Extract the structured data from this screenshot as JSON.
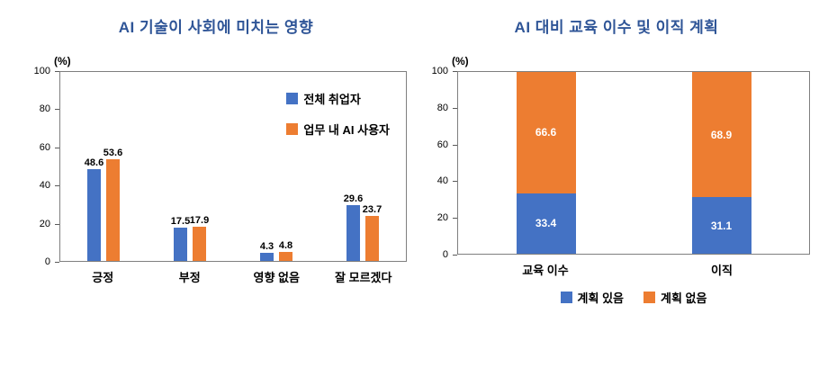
{
  "colors": {
    "title": "#2F5597",
    "series_blue": "#4472C4",
    "series_orange": "#ED7D31",
    "axis_border": "#7f7f7f"
  },
  "chart_data": [
    {
      "type": "bar",
      "variant": "grouped",
      "title": "AI 기술이 사회에 미치는 영향",
      "ylabel": "(%)",
      "ylim": [
        0,
        100
      ],
      "yticks": [
        0,
        20,
        40,
        60,
        80,
        100
      ],
      "grid": false,
      "legend_position": "inside-top-right",
      "categories": [
        "긍정",
        "부정",
        "영향 없음",
        "잘 모르겠다"
      ],
      "series": [
        {
          "name": "전체 취업자",
          "color": "#4472C4",
          "values": [
            48.6,
            17.5,
            4.3,
            29.6
          ]
        },
        {
          "name": "업무 내 AI 사용자",
          "color": "#ED7D31",
          "values": [
            53.6,
            17.9,
            4.8,
            23.7
          ]
        }
      ]
    },
    {
      "type": "bar",
      "variant": "stacked",
      "title": "AI 대비 교육 이수 및 이직 계획",
      "ylabel": "(%)",
      "ylim": [
        0,
        100
      ],
      "yticks": [
        0,
        20,
        40,
        60,
        80,
        100
      ],
      "grid": false,
      "legend_position": "bottom",
      "categories": [
        "교육 이수",
        "이직"
      ],
      "series": [
        {
          "name": "계획 있음",
          "color": "#4472C4",
          "values": [
            33.4,
            31.1
          ]
        },
        {
          "name": "계획 없음",
          "color": "#ED7D31",
          "values": [
            66.6,
            68.9
          ]
        }
      ]
    }
  ]
}
